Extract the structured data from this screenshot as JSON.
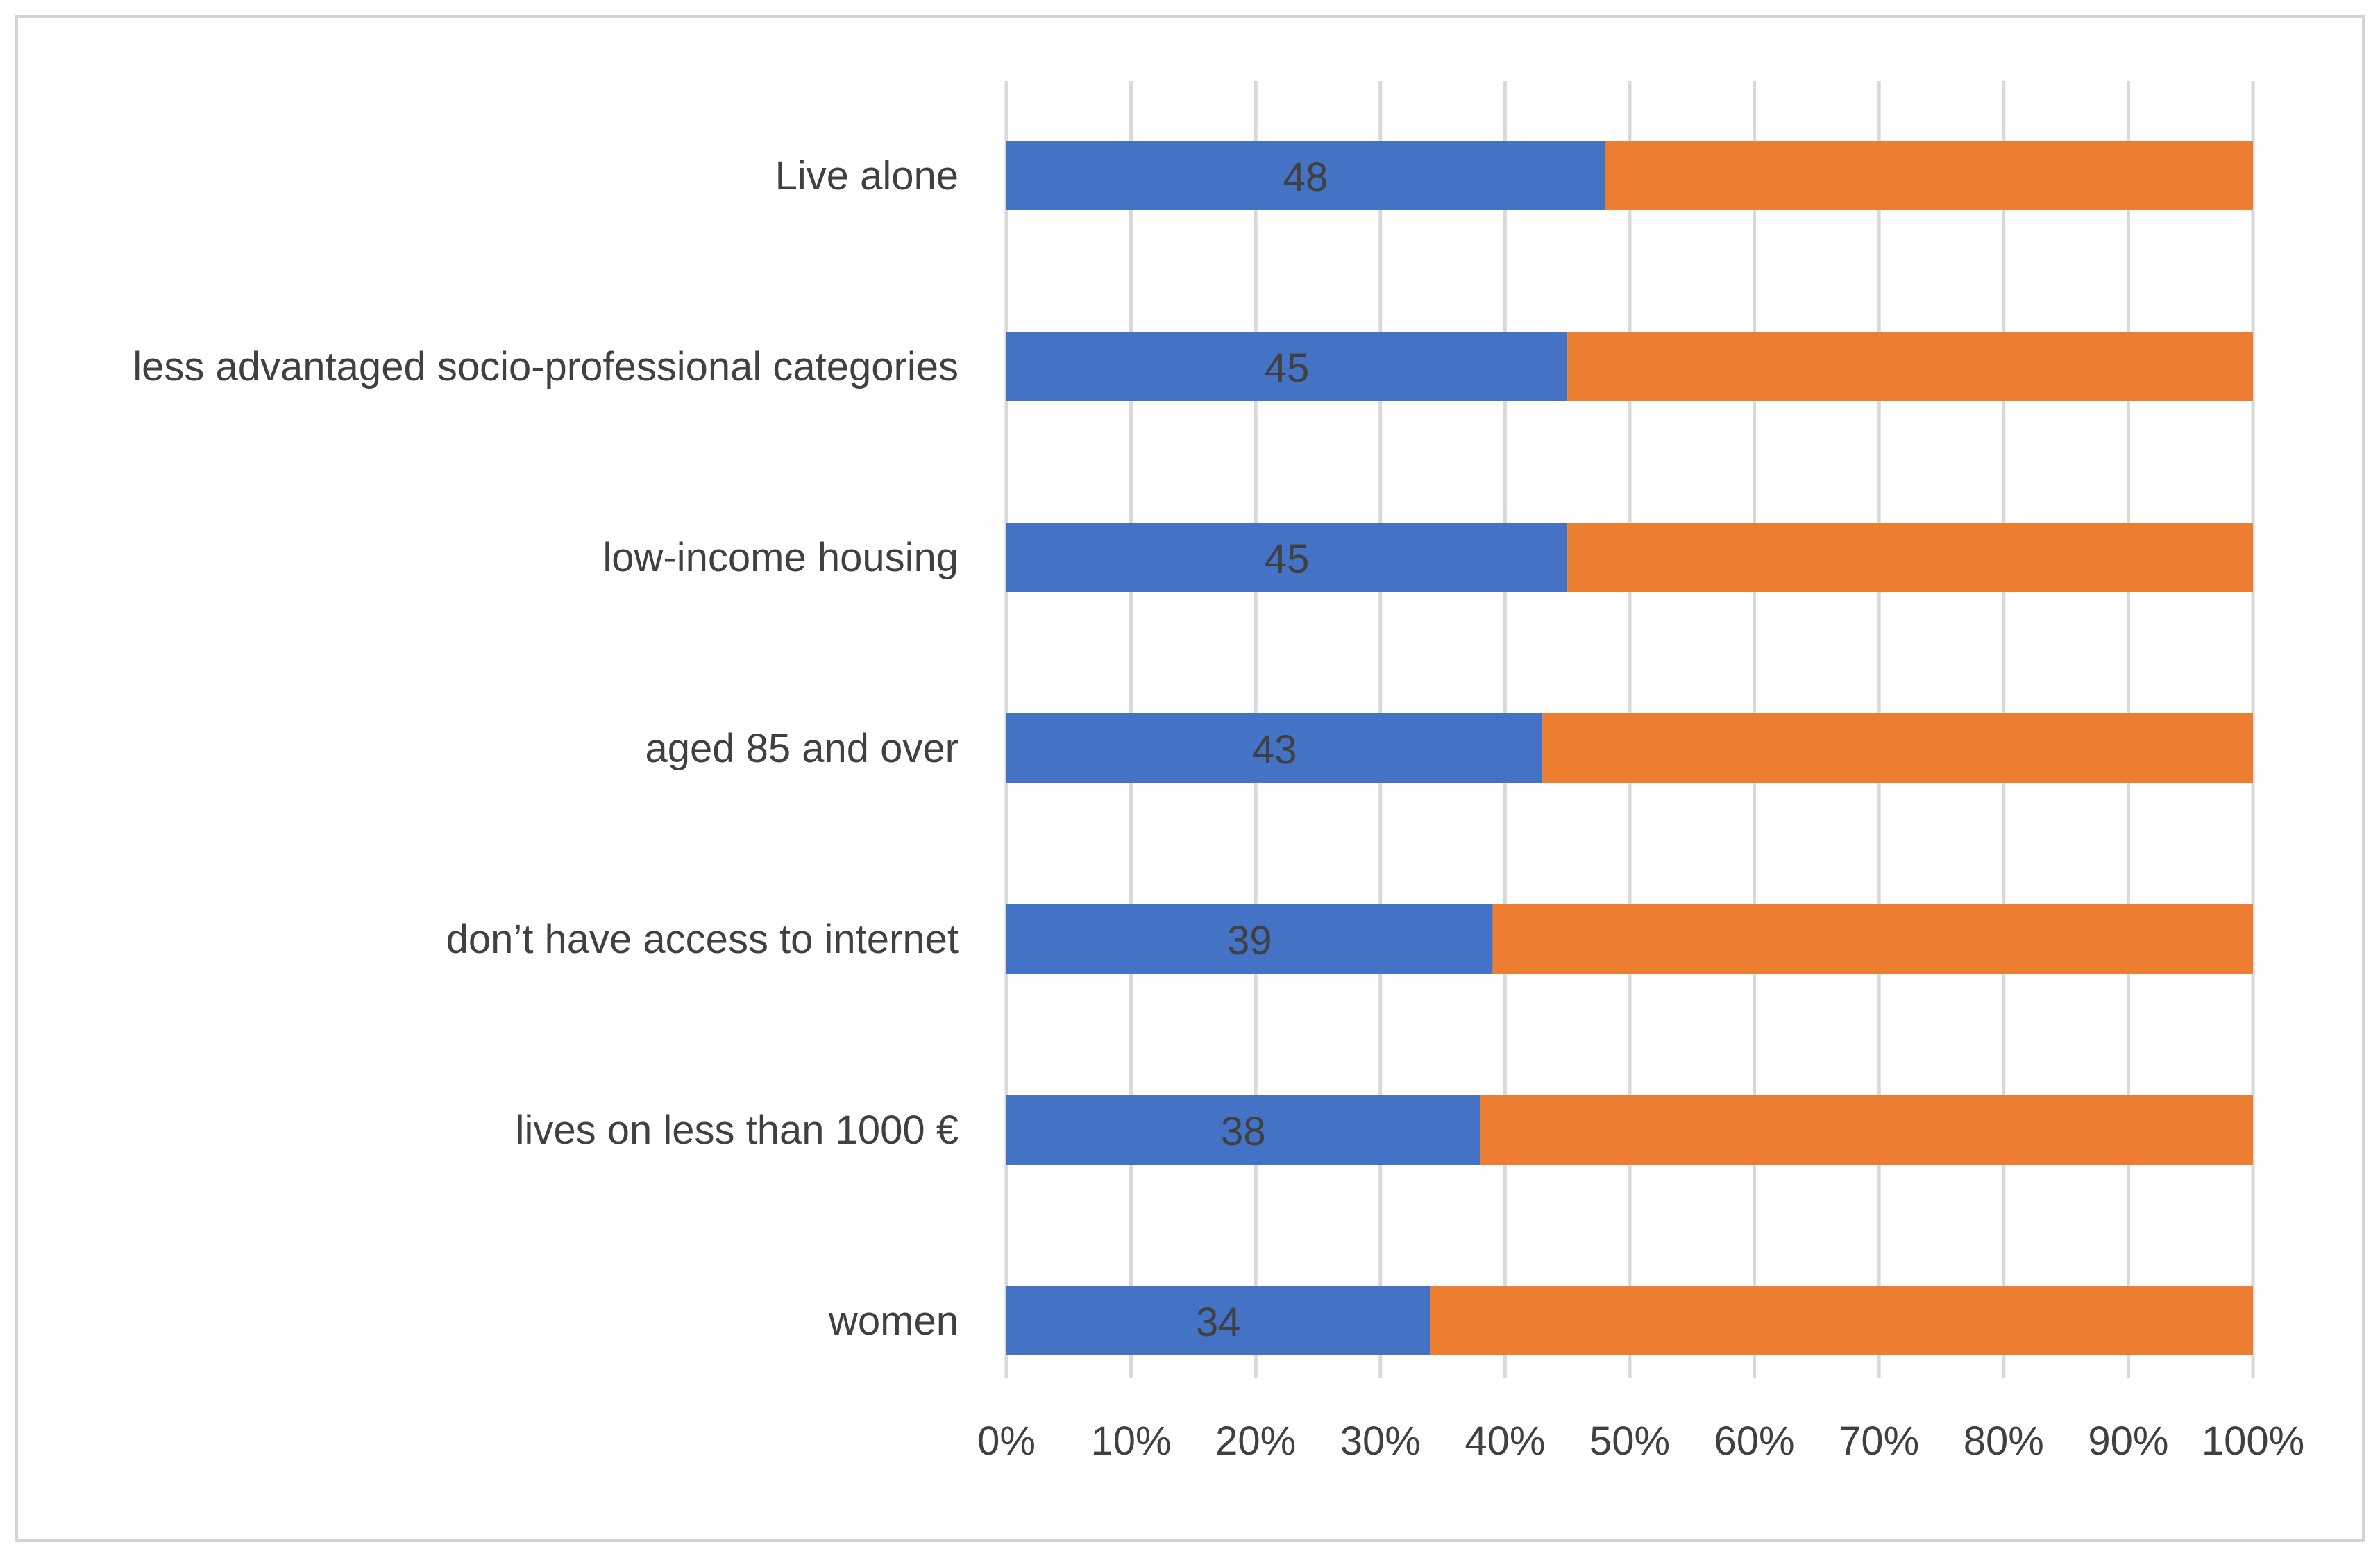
{
  "chart_data": {
    "type": "bar",
    "orientation": "horizontal",
    "stacked": "percent",
    "title": "",
    "xlabel": "",
    "ylabel": "",
    "xlim": [
      0,
      100
    ],
    "x_ticks": [
      "0%",
      "10%",
      "20%",
      "30%",
      "40%",
      "50%",
      "60%",
      "70%",
      "80%",
      "90%",
      "100%"
    ],
    "grid": true,
    "legend": "none",
    "categories": [
      "Live alone",
      "less advantaged socio-professional categories",
      "low-income housing",
      "aged 85 and over",
      "don’t have access to internet",
      "lives on less than 1000 €",
      "women "
    ],
    "series": [
      {
        "name": "Share",
        "color": "#4472c4",
        "values": [
          48,
          45,
          45,
          43,
          39,
          38,
          34
        ],
        "show_labels": true
      },
      {
        "name": "Remainder",
        "color": "#ed7d31",
        "values": [
          52,
          55,
          55,
          57,
          61,
          62,
          66
        ],
        "show_labels": false
      }
    ]
  }
}
